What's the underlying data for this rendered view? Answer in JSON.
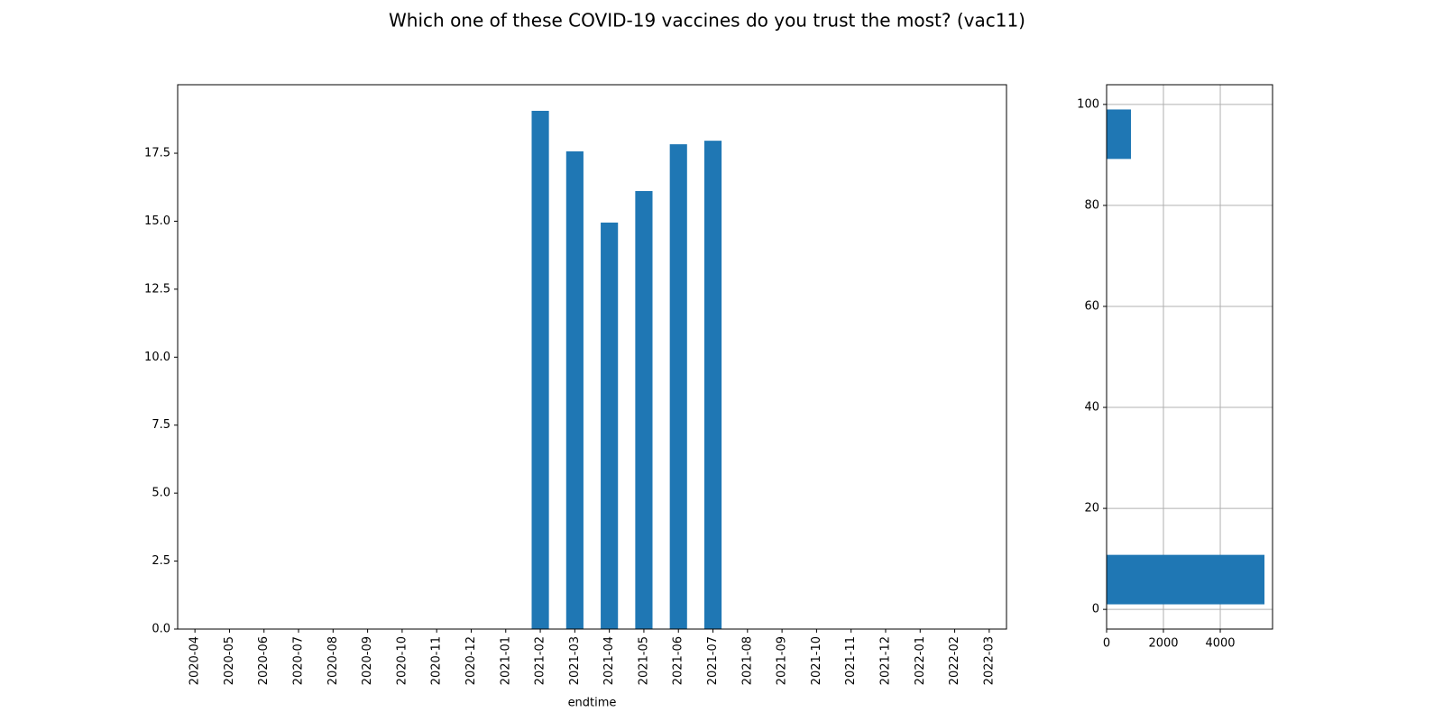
{
  "title": "Which one of these COVID-19 vaccines do you trust the most? (vac11)",
  "chart_data": [
    {
      "type": "bar",
      "xlabel": "endtime",
      "color": "#1f77b4",
      "categories": [
        "2020-04",
        "2020-05",
        "2020-06",
        "2020-07",
        "2020-08",
        "2020-09",
        "2020-10",
        "2020-11",
        "2020-12",
        "2021-01",
        "2021-02",
        "2021-03",
        "2021-04",
        "2021-05",
        "2021-06",
        "2021-07",
        "2021-08",
        "2021-09",
        "2021-10",
        "2021-11",
        "2021-12",
        "2022-01",
        "2022-02",
        "2022-03"
      ],
      "values": [
        null,
        null,
        null,
        null,
        null,
        null,
        null,
        null,
        null,
        null,
        19.06,
        17.57,
        14.95,
        16.11,
        17.83,
        17.96,
        null,
        null,
        null,
        null,
        null,
        null,
        null,
        null
      ],
      "ylim": [
        0,
        20.02
      ],
      "yticks": [
        {
          "value": 0,
          "label": "0.0"
        },
        {
          "value": 2.5,
          "label": "2.5"
        },
        {
          "value": 5,
          "label": "5.0"
        },
        {
          "value": 7.5,
          "label": "7.5"
        },
        {
          "value": 10,
          "label": "10.0"
        },
        {
          "value": 12.5,
          "label": "12.5"
        },
        {
          "value": 15,
          "label": "15.0"
        },
        {
          "value": 17.5,
          "label": "17.5"
        }
      ],
      "grid": false
    },
    {
      "type": "histogram",
      "orientation": "horizontal",
      "color": "#1f77b4",
      "bins": [
        1,
        10.8,
        20.6,
        30.4,
        40.2,
        50,
        59.8,
        69.6,
        79.4,
        89.2,
        99
      ],
      "values": [
        5556,
        0,
        0,
        0,
        0,
        0,
        0,
        0,
        0,
        857
      ],
      "xlim": [
        0,
        5840
      ],
      "xticks": [
        0,
        2000,
        4000
      ],
      "ylim": [
        -3.9,
        103.9
      ],
      "yticks": [
        0,
        20,
        40,
        60,
        80,
        100
      ],
      "grid": true
    }
  ]
}
